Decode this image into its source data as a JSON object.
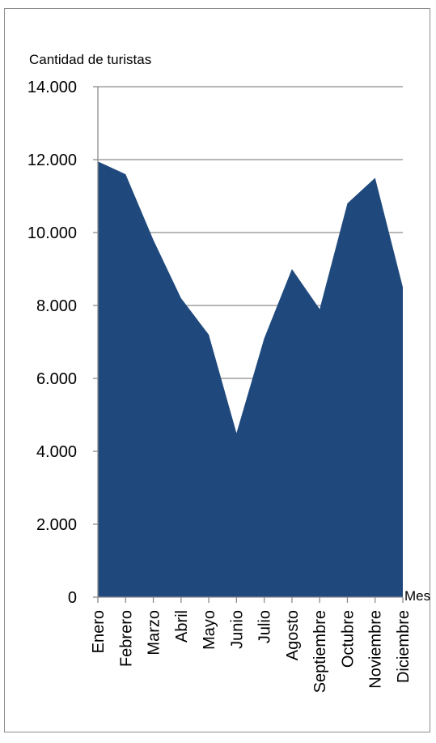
{
  "chart_data": {
    "type": "area",
    "title": "",
    "ylabel": "Cantidad de turistas",
    "xlabel": "Mes",
    "categories": [
      "Enero",
      "Febrero",
      "Marzo",
      "Abril",
      "Mayo",
      "Junio",
      "Julio",
      "Agosto",
      "Septiembre",
      "Octubre",
      "Noviembre",
      "Diciembre"
    ],
    "values": [
      11950,
      11600,
      9800,
      8200,
      7200,
      4500,
      7100,
      9000,
      7900,
      10800,
      11500,
      8500
    ],
    "ylim": [
      0,
      14000
    ],
    "yticks": [
      0,
      2000,
      4000,
      6000,
      8000,
      10000,
      12000,
      14000
    ],
    "ytick_labels": [
      "0",
      "2.000",
      "4.000",
      "6.000",
      "8.000",
      "10.000",
      "12.000",
      "14.000"
    ],
    "grid": true,
    "legend": "none",
    "fill_color": "#1f497d",
    "grid_color": "#8c8c8c"
  }
}
